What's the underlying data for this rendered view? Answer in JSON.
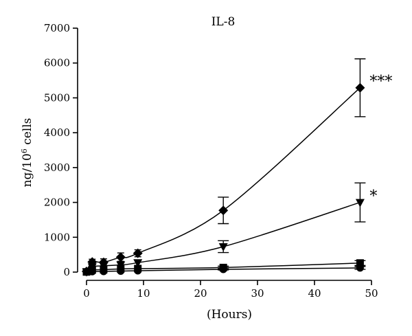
{
  "chart_data": {
    "type": "line",
    "title": "IL-8",
    "xlabel": "(Hours)",
    "ylabel_base": "ng/10",
    "ylabel_sup": "6",
    "ylabel_tail": " cells",
    "xlim": [
      0,
      50
    ],
    "ylim": [
      0,
      7000
    ],
    "x_ticks": [
      0,
      10,
      20,
      30,
      40,
      50
    ],
    "y_ticks": [
      0,
      1000,
      2000,
      3000,
      4000,
      5000,
      6000,
      7000
    ],
    "grid": false,
    "series": [
      {
        "marker": "diamond",
        "x": [
          0,
          1,
          3,
          6,
          9,
          24,
          48
        ],
        "y": [
          20,
          290,
          280,
          430,
          540,
          1770,
          5290
        ],
        "err": [
          20,
          80,
          100,
          120,
          100,
          380,
          830
        ]
      },
      {
        "marker": "triangle-down",
        "x": [
          0,
          1,
          3,
          6,
          9,
          24,
          48
        ],
        "y": [
          10,
          150,
          180,
          210,
          270,
          730,
          2000
        ],
        "err": [
          10,
          50,
          60,
          70,
          80,
          170,
          560
        ]
      },
      {
        "marker": "square",
        "x": [
          0,
          1,
          3,
          6,
          9,
          24,
          48
        ],
        "y": [
          5,
          60,
          70,
          90,
          100,
          130,
          260
        ],
        "err": [
          5,
          20,
          20,
          20,
          20,
          40,
          70
        ]
      },
      {
        "marker": "circle",
        "x": [
          0,
          1,
          3,
          6,
          9,
          24,
          48
        ],
        "y": [
          3,
          15,
          20,
          30,
          40,
          80,
          120
        ],
        "err": [
          2,
          10,
          10,
          10,
          10,
          20,
          40
        ]
      }
    ],
    "annotations": [
      {
        "text": "***",
        "series_index": 0
      },
      {
        "text": "*",
        "series_index": 1
      }
    ]
  }
}
